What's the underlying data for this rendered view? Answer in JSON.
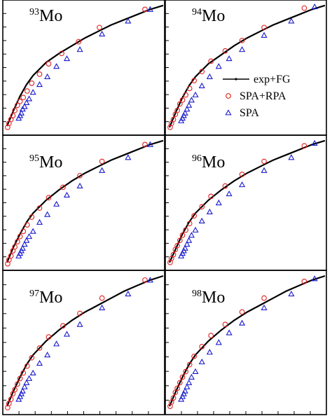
{
  "chart_data": {
    "type": "scatter",
    "layout": "3x2 grid of panels",
    "colors": {
      "fg": "#000000",
      "spa_rpa": "#e02020",
      "spa": "#1a1acc"
    },
    "legend": {
      "placement": "right side of top-right panel",
      "entries": [
        {
          "key": "fg",
          "label": "exp+FG",
          "marker": "line-with-dot"
        },
        {
          "key": "spa_rpa",
          "label": "SPA+RPA",
          "marker": "open-circle"
        },
        {
          "key": "spa",
          "label": "SPA",
          "marker": "open-triangle"
        }
      ]
    },
    "panels": [
      {
        "id": "mo93",
        "mass": "93",
        "element": "Mo",
        "fg": [
          [
            0,
            0.06
          ],
          [
            0.5,
            0.18
          ],
          [
            1,
            0.29
          ],
          [
            1.5,
            0.38
          ],
          [
            2,
            0.45
          ],
          [
            3,
            0.55
          ],
          [
            4,
            0.62
          ],
          [
            5,
            0.68
          ],
          [
            6,
            0.74
          ],
          [
            7,
            0.79
          ],
          [
            8,
            0.84
          ],
          [
            9,
            0.88
          ],
          [
            10,
            0.92
          ],
          [
            11,
            0.96
          ],
          [
            12,
            0.99
          ]
        ],
        "spa_rpa": [
          [
            0.05,
            0.05
          ],
          [
            0.15,
            0.08
          ],
          [
            0.3,
            0.11
          ],
          [
            0.45,
            0.14
          ],
          [
            0.6,
            0.18
          ],
          [
            0.8,
            0.22
          ],
          [
            1.0,
            0.25
          ],
          [
            1.25,
            0.28
          ],
          [
            1.55,
            0.33
          ],
          [
            1.9,
            0.39
          ],
          [
            2.5,
            0.46
          ],
          [
            3.2,
            0.54
          ],
          [
            4.2,
            0.62
          ],
          [
            5.5,
            0.71
          ],
          [
            7.1,
            0.82
          ],
          [
            10.6,
            0.96
          ]
        ],
        "spa": [
          [
            0.9,
            0.12
          ],
          [
            1.0,
            0.14
          ],
          [
            1.1,
            0.16
          ],
          [
            1.2,
            0.19
          ],
          [
            1.35,
            0.21
          ],
          [
            1.5,
            0.24
          ],
          [
            1.7,
            0.27
          ],
          [
            2.0,
            0.32
          ],
          [
            2.5,
            0.38
          ],
          [
            3.1,
            0.44
          ],
          [
            3.8,
            0.52
          ],
          [
            4.6,
            0.58
          ],
          [
            5.6,
            0.65
          ],
          [
            7.3,
            0.77
          ],
          [
            9.3,
            0.87
          ],
          [
            11.0,
            0.96
          ]
        ]
      },
      {
        "id": "mo94",
        "mass": "94",
        "element": "Mo",
        "fg": [
          [
            0,
            0.05
          ],
          [
            0.5,
            0.17
          ],
          [
            1,
            0.28
          ],
          [
            1.5,
            0.37
          ],
          [
            2,
            0.44
          ],
          [
            3,
            0.54
          ],
          [
            4,
            0.61
          ],
          [
            5,
            0.68
          ],
          [
            6,
            0.74
          ],
          [
            7,
            0.79
          ],
          [
            8,
            0.84
          ],
          [
            9,
            0.88
          ],
          [
            10,
            0.92
          ],
          [
            11,
            0.96
          ],
          [
            12,
            0.99
          ]
        ],
        "spa_rpa": [
          [
            0.05,
            0.05
          ],
          [
            0.15,
            0.08
          ],
          [
            0.3,
            0.11
          ],
          [
            0.45,
            0.15
          ],
          [
            0.6,
            0.18
          ],
          [
            0.8,
            0.23
          ],
          [
            1.0,
            0.26
          ],
          [
            1.25,
            0.3
          ],
          [
            1.55,
            0.35
          ],
          [
            1.9,
            0.41
          ],
          [
            2.5,
            0.48
          ],
          [
            3.2,
            0.56
          ],
          [
            4.3,
            0.64
          ],
          [
            5.6,
            0.72
          ],
          [
            7.3,
            0.82
          ],
          [
            10.4,
            0.97
          ]
        ],
        "spa": [
          [
            0.9,
            0.1
          ],
          [
            1.0,
            0.12
          ],
          [
            1.1,
            0.14
          ],
          [
            1.2,
            0.16
          ],
          [
            1.35,
            0.19
          ],
          [
            1.5,
            0.22
          ],
          [
            1.7,
            0.26
          ],
          [
            2.0,
            0.3
          ],
          [
            2.5,
            0.37
          ],
          [
            3.1,
            0.44
          ],
          [
            3.8,
            0.52
          ],
          [
            4.6,
            0.58
          ],
          [
            5.6,
            0.65
          ],
          [
            7.3,
            0.76
          ],
          [
            9.4,
            0.87
          ],
          [
            11.2,
            0.98
          ]
        ]
      },
      {
        "id": "mo95",
        "mass": "95",
        "element": "Mo",
        "fg": [
          [
            0,
            0.05
          ],
          [
            0.5,
            0.17
          ],
          [
            1,
            0.27
          ],
          [
            1.5,
            0.36
          ],
          [
            2,
            0.43
          ],
          [
            3,
            0.53
          ],
          [
            4,
            0.61
          ],
          [
            5,
            0.68
          ],
          [
            6,
            0.74
          ],
          [
            7,
            0.79
          ],
          [
            8,
            0.84
          ],
          [
            9,
            0.88
          ],
          [
            10,
            0.92
          ],
          [
            11,
            0.96
          ],
          [
            12,
            0.99
          ]
        ],
        "spa_rpa": [
          [
            0.05,
            0.04
          ],
          [
            0.15,
            0.07
          ],
          [
            0.3,
            0.1
          ],
          [
            0.45,
            0.14
          ],
          [
            0.6,
            0.17
          ],
          [
            0.8,
            0.21
          ],
          [
            1.0,
            0.25
          ],
          [
            1.25,
            0.29
          ],
          [
            1.55,
            0.34
          ],
          [
            1.9,
            0.4
          ],
          [
            2.5,
            0.47
          ],
          [
            3.2,
            0.55
          ],
          [
            4.3,
            0.63
          ],
          [
            5.6,
            0.72
          ],
          [
            7.3,
            0.83
          ],
          [
            10.6,
            0.96
          ]
        ],
        "spa": [
          [
            0.9,
            0.1
          ],
          [
            1.0,
            0.12
          ],
          [
            1.1,
            0.14
          ],
          [
            1.2,
            0.16
          ],
          [
            1.35,
            0.19
          ],
          [
            1.5,
            0.22
          ],
          [
            1.7,
            0.25
          ],
          [
            2.0,
            0.29
          ],
          [
            2.5,
            0.36
          ],
          [
            3.1,
            0.42
          ],
          [
            3.8,
            0.5
          ],
          [
            4.6,
            0.57
          ],
          [
            5.6,
            0.64
          ],
          [
            7.3,
            0.76
          ],
          [
            9.3,
            0.86
          ],
          [
            11.0,
            0.96
          ]
        ]
      },
      {
        "id": "mo96",
        "mass": "96",
        "element": "Mo",
        "fg": [
          [
            0,
            0.05
          ],
          [
            0.5,
            0.16
          ],
          [
            1,
            0.27
          ],
          [
            1.5,
            0.36
          ],
          [
            2,
            0.43
          ],
          [
            3,
            0.53
          ],
          [
            4,
            0.61
          ],
          [
            5,
            0.68
          ],
          [
            6,
            0.74
          ],
          [
            7,
            0.79
          ],
          [
            8,
            0.84
          ],
          [
            9,
            0.88
          ],
          [
            10,
            0.92
          ],
          [
            11,
            0.96
          ],
          [
            12,
            0.99
          ]
        ],
        "spa_rpa": [
          [
            0.05,
            0.05
          ],
          [
            0.15,
            0.08
          ],
          [
            0.3,
            0.11
          ],
          [
            0.45,
            0.15
          ],
          [
            0.6,
            0.18
          ],
          [
            0.8,
            0.22
          ],
          [
            1.0,
            0.26
          ],
          [
            1.25,
            0.3
          ],
          [
            1.55,
            0.35
          ],
          [
            1.9,
            0.41
          ],
          [
            2.5,
            0.48
          ],
          [
            3.2,
            0.56
          ],
          [
            4.3,
            0.64
          ],
          [
            5.6,
            0.73
          ],
          [
            7.3,
            0.83
          ],
          [
            10.4,
            0.95
          ]
        ],
        "spa": [
          [
            0.9,
            0.1
          ],
          [
            1.0,
            0.12
          ],
          [
            1.1,
            0.14
          ],
          [
            1.2,
            0.16
          ],
          [
            1.35,
            0.19
          ],
          [
            1.5,
            0.22
          ],
          [
            1.7,
            0.26
          ],
          [
            2.0,
            0.3
          ],
          [
            2.5,
            0.37
          ],
          [
            3.1,
            0.44
          ],
          [
            3.8,
            0.51
          ],
          [
            4.6,
            0.58
          ],
          [
            5.6,
            0.65
          ],
          [
            7.3,
            0.76
          ],
          [
            9.4,
            0.86
          ],
          [
            11.2,
            0.97
          ]
        ]
      },
      {
        "id": "mo97",
        "mass": "97",
        "element": "Mo",
        "fg": [
          [
            0,
            0.05
          ],
          [
            0.5,
            0.16
          ],
          [
            1,
            0.26
          ],
          [
            1.5,
            0.35
          ],
          [
            2,
            0.42
          ],
          [
            3,
            0.52
          ],
          [
            4,
            0.6
          ],
          [
            5,
            0.67
          ],
          [
            6,
            0.73
          ],
          [
            7,
            0.78
          ],
          [
            8,
            0.83
          ],
          [
            9,
            0.88
          ],
          [
            10,
            0.92
          ],
          [
            11,
            0.96
          ],
          [
            12,
            0.99
          ]
        ],
        "spa_rpa": [
          [
            0.05,
            0.04
          ],
          [
            0.15,
            0.07
          ],
          [
            0.3,
            0.1
          ],
          [
            0.45,
            0.14
          ],
          [
            0.6,
            0.17
          ],
          [
            0.8,
            0.21
          ],
          [
            1.0,
            0.25
          ],
          [
            1.25,
            0.29
          ],
          [
            1.55,
            0.34
          ],
          [
            1.9,
            0.4
          ],
          [
            2.5,
            0.47
          ],
          [
            3.2,
            0.55
          ],
          [
            4.3,
            0.63
          ],
          [
            5.6,
            0.72
          ],
          [
            7.3,
            0.83
          ],
          [
            10.6,
            0.96
          ]
        ],
        "spa": [
          [
            0.9,
            0.1
          ],
          [
            1.0,
            0.12
          ],
          [
            1.1,
            0.14
          ],
          [
            1.2,
            0.16
          ],
          [
            1.35,
            0.19
          ],
          [
            1.5,
            0.22
          ],
          [
            1.7,
            0.25
          ],
          [
            2.0,
            0.29
          ],
          [
            2.5,
            0.36
          ],
          [
            3.1,
            0.42
          ],
          [
            3.8,
            0.5
          ],
          [
            4.6,
            0.57
          ],
          [
            5.6,
            0.64
          ],
          [
            7.3,
            0.76
          ],
          [
            9.3,
            0.86
          ],
          [
            11.0,
            0.96
          ]
        ]
      },
      {
        "id": "mo98",
        "mass": "98",
        "element": "Mo",
        "fg": [
          [
            0,
            0.05
          ],
          [
            0.5,
            0.16
          ],
          [
            1,
            0.26
          ],
          [
            1.5,
            0.35
          ],
          [
            2,
            0.42
          ],
          [
            3,
            0.52
          ],
          [
            4,
            0.6
          ],
          [
            5,
            0.67
          ],
          [
            6,
            0.73
          ],
          [
            7,
            0.78
          ],
          [
            8,
            0.83
          ],
          [
            9,
            0.88
          ],
          [
            10,
            0.92
          ],
          [
            11,
            0.96
          ],
          [
            12,
            0.99
          ]
        ],
        "spa_rpa": [
          [
            0.05,
            0.05
          ],
          [
            0.15,
            0.08
          ],
          [
            0.3,
            0.11
          ],
          [
            0.45,
            0.15
          ],
          [
            0.6,
            0.18
          ],
          [
            0.8,
            0.22
          ],
          [
            1.0,
            0.26
          ],
          [
            1.25,
            0.3
          ],
          [
            1.55,
            0.35
          ],
          [
            1.9,
            0.41
          ],
          [
            2.5,
            0.48
          ],
          [
            3.2,
            0.56
          ],
          [
            4.3,
            0.64
          ],
          [
            5.6,
            0.73
          ],
          [
            7.3,
            0.83
          ],
          [
            10.4,
            0.95
          ]
        ],
        "spa": [
          [
            0.9,
            0.1
          ],
          [
            1.0,
            0.12
          ],
          [
            1.1,
            0.14
          ],
          [
            1.2,
            0.16
          ],
          [
            1.35,
            0.19
          ],
          [
            1.5,
            0.22
          ],
          [
            1.7,
            0.26
          ],
          [
            2.0,
            0.3
          ],
          [
            2.5,
            0.37
          ],
          [
            3.1,
            0.44
          ],
          [
            3.8,
            0.51
          ],
          [
            4.6,
            0.58
          ],
          [
            5.6,
            0.65
          ],
          [
            7.3,
            0.76
          ],
          [
            9.4,
            0.86
          ],
          [
            11.2,
            0.97
          ]
        ]
      }
    ]
  }
}
